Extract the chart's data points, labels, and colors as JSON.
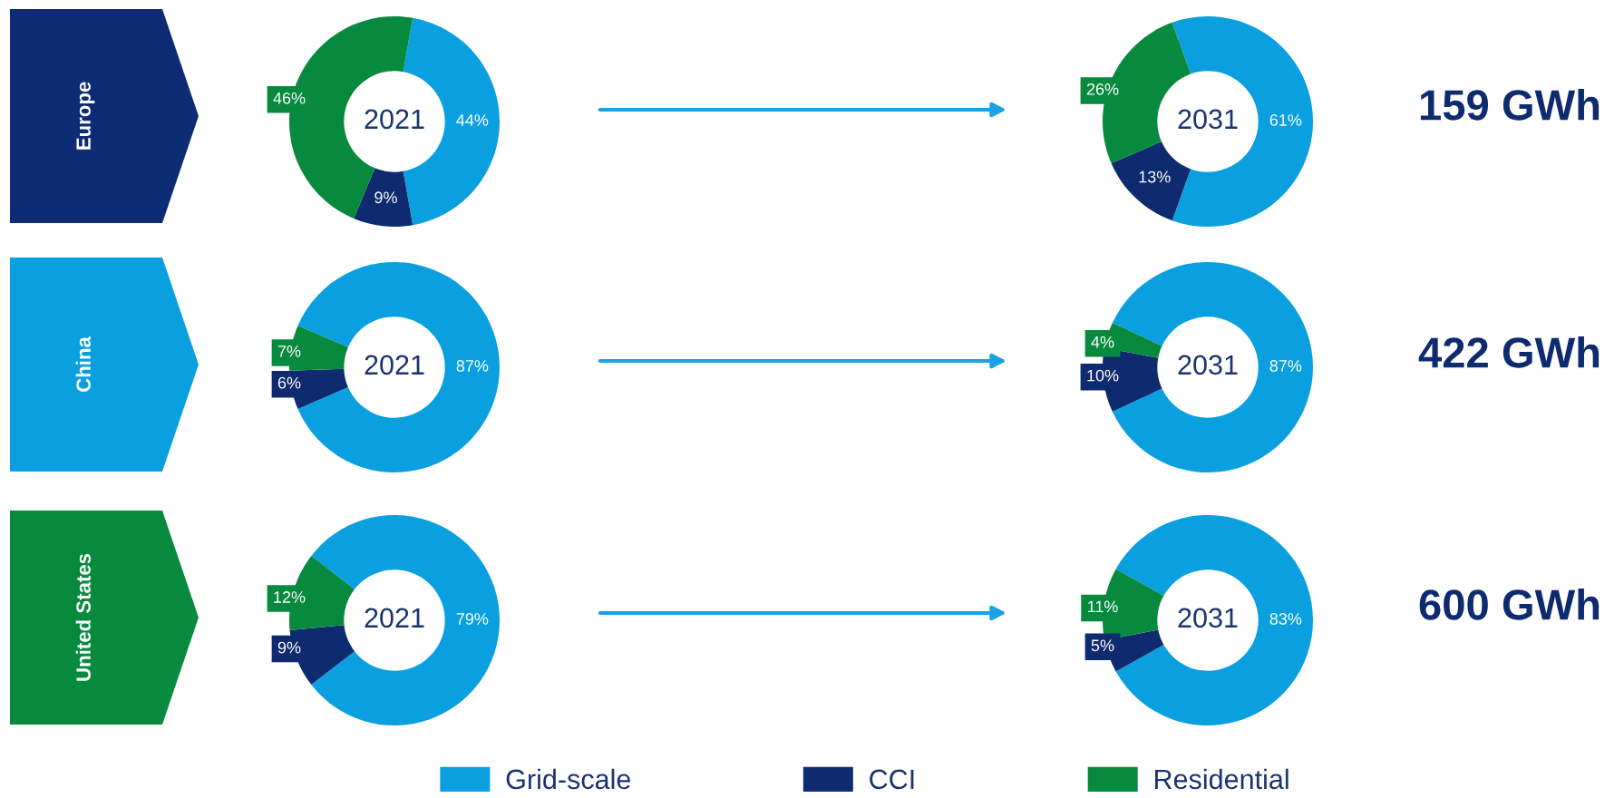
{
  "chart_data": [
    {
      "type": "donut",
      "ylabel": "Europe",
      "title": "2021",
      "categories": [
        "Grid-scale",
        "CCI",
        "Residential"
      ],
      "values": [
        44,
        9,
        46
      ],
      "colors": [
        "#0aa0e0",
        "#0f2b70",
        "#078a3e"
      ],
      "value_labels": [
        "44%",
        "9%",
        "46%"
      ],
      "legend": "bottom"
    },
    {
      "type": "donut",
      "title": "2031",
      "categories": [
        null,
        null,
        null
      ],
      "values": [
        61,
        13,
        26
      ],
      "colors": [
        "#0aa0e0",
        "#0f2b70",
        "#078a3e"
      ],
      "value_labels": [
        "61%",
        "13%",
        "26%"
      ],
      "annotations": [
        "159 GWh"
      ]
    },
    {
      "type": "donut",
      "ylabel": "China",
      "title": "2021",
      "categories": [
        null,
        null,
        null
      ],
      "values": [
        87,
        6,
        7
      ],
      "colors": [
        "#0aa0e0",
        "#0f2b70",
        "#078a3e"
      ],
      "value_labels": [
        "87%",
        "6%",
        "7%"
      ]
    },
    {
      "type": "donut",
      "title": "2031",
      "categories": [
        null,
        null,
        null
      ],
      "values": [
        87,
        10,
        4
      ],
      "colors": [
        "#0aa0e0",
        "#0f2b70",
        "#078a3e"
      ],
      "value_labels": [
        "87%",
        "10%",
        "4%"
      ],
      "annotations": [
        "422 GWh"
      ]
    },
    {
      "type": "donut",
      "ylabel": "United States",
      "title": "2021",
      "categories": [
        null,
        null,
        null
      ],
      "values": [
        79,
        9,
        12
      ],
      "colors": [
        "#0aa0e0",
        "#0f2b70",
        "#078a3e"
      ],
      "value_labels": [
        "79%",
        "9%",
        "12%"
      ]
    },
    {
      "type": "donut",
      "title": "2031",
      "categories": [
        null,
        null,
        null
      ],
      "values": [
        83,
        5,
        11
      ],
      "colors": [
        "#0aa0e0",
        "#0f2b70",
        "#078a3e"
      ],
      "value_labels": [
        "83%",
        "5%",
        "11%"
      ],
      "annotations": [
        "600 GWh"
      ]
    }
  ]
}
